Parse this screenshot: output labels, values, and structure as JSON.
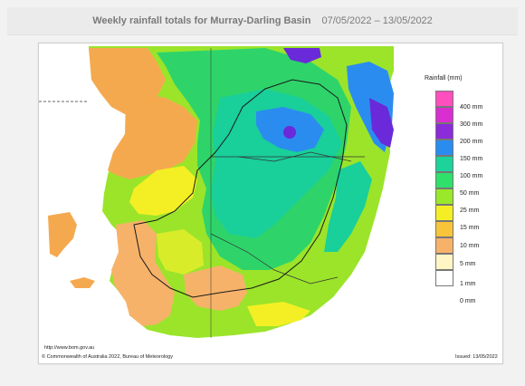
{
  "title": {
    "main": "Weekly rainfall totals for Murray-Darling Basin",
    "dates": "07/05/2022 – 13/05/2022"
  },
  "legend": {
    "title": "Rainfall (mm)",
    "items": [
      {
        "label": "400 mm",
        "color": "#ff4fbf"
      },
      {
        "label": "300 mm",
        "color": "#d92fd0"
      },
      {
        "label": "200 mm",
        "color": "#8b2bd9"
      },
      {
        "label": "150 mm",
        "color": "#2b8cf0"
      },
      {
        "label": "100 mm",
        "color": "#1cd39a"
      },
      {
        "label": "50 mm",
        "color": "#2fe06a"
      },
      {
        "label": "25 mm",
        "color": "#9ae82a"
      },
      {
        "label": "15 mm",
        "color": "#f4ef24"
      },
      {
        "label": "10 mm",
        "color": "#f8c43a"
      },
      {
        "label": "5 mm",
        "color": "#f7b26a"
      },
      {
        "label": "1 mm",
        "color": "#fff6c6"
      },
      {
        "label": "0 mm",
        "color": "#ffffff"
      }
    ]
  },
  "footer": {
    "url": "http://www.bom.gov.au",
    "copyright": "© Commonwealth of Australia 2022, Bureau of Meteorology",
    "issued": "Issued: 13/05/2022"
  },
  "colors": {
    "ocean": "#ffffff",
    "dry_orange": "#f5a94f",
    "light_green": "#9be42a",
    "green": "#2ed46a",
    "teal": "#19cf9a",
    "blue": "#2b7df0",
    "purple": "#6a2ad9"
  }
}
